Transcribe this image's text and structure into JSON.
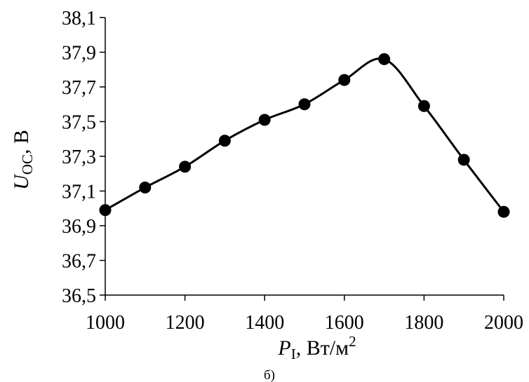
{
  "chart_data": {
    "type": "line",
    "x": [
      1000,
      1100,
      1200,
      1300,
      1400,
      1500,
      1600,
      1700,
      1800,
      1900,
      2000
    ],
    "series": [
      {
        "values": [
          36.99,
          37.12,
          37.24,
          37.39,
          37.51,
          37.6,
          37.74,
          37.86,
          37.59,
          37.28,
          36.98
        ]
      }
    ],
    "xlim": [
      1000,
      2000
    ],
    "ylim": [
      36.5,
      38.1
    ],
    "xticks": [
      1000,
      1200,
      1400,
      1600,
      1800,
      2000
    ],
    "yticks": [
      36.5,
      36.7,
      36.9,
      37.1,
      37.3,
      37.5,
      37.7,
      37.9,
      38.1
    ],
    "xtick_labels": [
      "1000",
      "1200",
      "1400",
      "1600",
      "1800",
      "2000"
    ],
    "ytick_labels": [
      "36,5",
      "36,7",
      "36,9",
      "37,1",
      "37,3",
      "37,5",
      "37,7",
      "37,9",
      "38,1"
    ],
    "xlabel": {
      "symbol": "P",
      "subscript": "I",
      "rest": ", Вт/м",
      "superscript": "2"
    },
    "ylabel": {
      "symbol": "U",
      "subscript": "OC",
      "rest": ", В"
    },
    "caption": "б)",
    "grid": false,
    "line_color": "#000000",
    "marker_color": "#000000"
  }
}
